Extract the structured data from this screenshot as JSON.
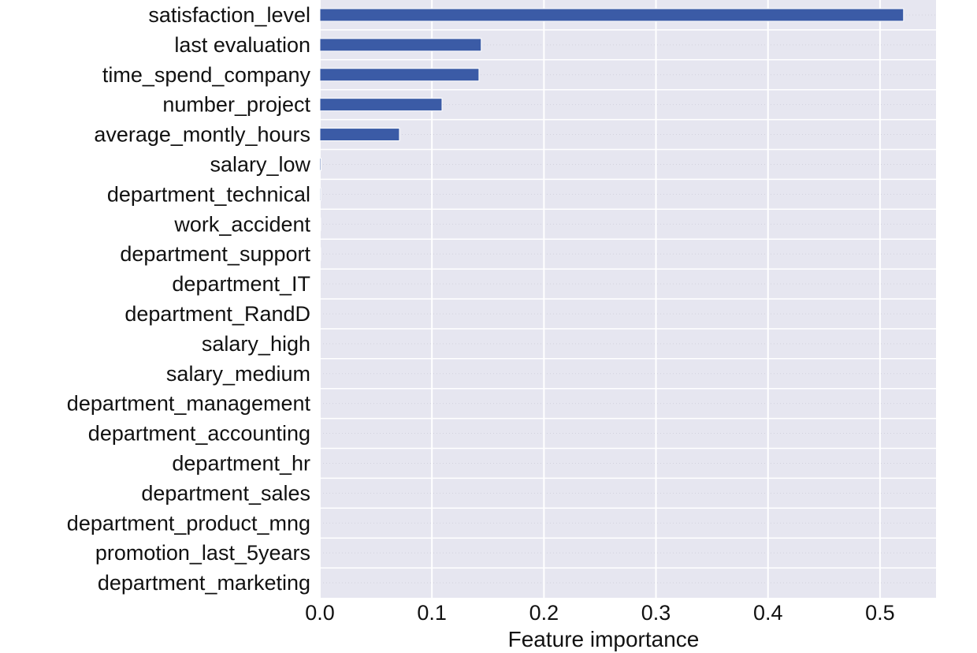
{
  "chart_data": {
    "type": "bar",
    "orientation": "horizontal",
    "categories": [
      "satisfaction_level",
      "last evaluation",
      "time_spend_company",
      "number_project",
      "average_montly_hours",
      "salary_low",
      "department_technical",
      "work_accident",
      "department_support",
      "department_IT",
      "department_RandD",
      "salary_high",
      "salary_medium",
      "department_management",
      "department_accounting",
      "department_hr",
      "department_sales",
      "department_product_mng",
      "promotion_last_5years",
      "department_marketing"
    ],
    "values": [
      0.521,
      0.144,
      0.142,
      0.109,
      0.071,
      0.001,
      0.0008,
      0.0006,
      0.0005,
      0,
      0,
      0,
      0,
      0,
      0,
      0,
      0,
      0,
      0,
      0
    ],
    "x_ticks": [
      "0.0",
      "0.1",
      "0.2",
      "0.3",
      "0.4",
      "0.5"
    ],
    "x_tick_values": [
      0,
      0.1,
      0.2,
      0.3,
      0.4,
      0.5
    ],
    "xlim": [
      0,
      0.55
    ],
    "xlabel": "Feature importance",
    "ylabel": "",
    "title": "",
    "grid": true,
    "colors": {
      "bar": "#3b5ba6",
      "bar_edge": "#ffffff",
      "plot_bg": "#e6e6f0",
      "grid": "#ffffff",
      "minor_grid": "#d2d2dd"
    }
  }
}
